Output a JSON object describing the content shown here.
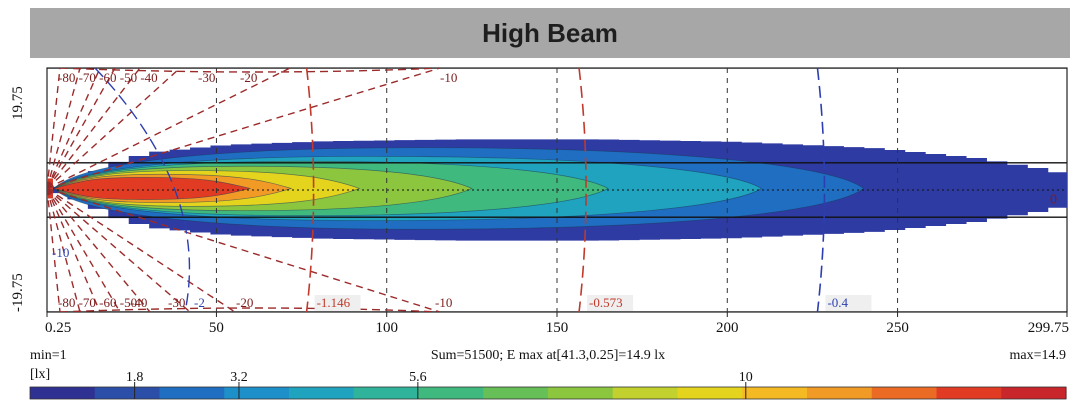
{
  "title": "High Beam",
  "chart_data": {
    "type": "heatmap",
    "title": "High Beam",
    "x_range": [
      0.25,
      299.75
    ],
    "y_range": [
      -19.75,
      19.75
    ],
    "x_ticks": [
      {
        "value": 0.25,
        "label": "0.25"
      },
      {
        "value": 50,
        "label": "50"
      },
      {
        "value": 100,
        "label": "100"
      },
      {
        "value": 150,
        "label": "150"
      },
      {
        "value": 200,
        "label": "200"
      },
      {
        "value": 250,
        "label": "250"
      },
      {
        "value": 299.75,
        "label": "299.75"
      }
    ],
    "y_ticks": [
      {
        "value": 19.75,
        "label": "19.75"
      },
      {
        "value": -19.75,
        "label": "-19.75"
      }
    ],
    "beam": {
      "peak_x": 41.3,
      "peak_y": 0.25,
      "peak_value": 14.9,
      "extent": [
        [
          0.25,
          0.5
        ],
        [
          5,
          1.2
        ],
        [
          10,
          2.5
        ],
        [
          20,
          5
        ],
        [
          30,
          6.2
        ],
        [
          50,
          7.3
        ],
        [
          80,
          7.9
        ],
        [
          120,
          8.2
        ],
        [
          160,
          8.2
        ],
        [
          200,
          7.8
        ],
        [
          240,
          6.8
        ],
        [
          270,
          5.2
        ],
        [
          290,
          3.4
        ],
        [
          299.75,
          2.2
        ]
      ],
      "bands": [
        {
          "value": 1,
          "color": "#2e3ba3",
          "length": 299.75,
          "width": 8.2
        },
        {
          "value": 1.8,
          "color": "#1f6ec2",
          "length": 240,
          "width": 6.6
        },
        {
          "value": 3.2,
          "color": "#20a3bf",
          "length": 210,
          "width": 5.2
        },
        {
          "value": 4.5,
          "color": "#3fb97d",
          "length": 165,
          "width": 4.4
        },
        {
          "value": 5.6,
          "color": "#8cc63f",
          "length": 125,
          "width": 3.6
        },
        {
          "value": 7,
          "color": "#e4d41e",
          "length": 92,
          "width": 2.9
        },
        {
          "value": 8.5,
          "color": "#f19a26",
          "length": 72,
          "width": 2.3
        },
        {
          "value": 10,
          "color": "#e23b24",
          "length": 60,
          "width": 1.8
        }
      ]
    },
    "horizontal_lines": [
      19.75,
      4.4,
      0,
      -4.4,
      -19.75
    ],
    "vertical_gridlines": [
      50,
      100,
      150,
      200,
      250
    ],
    "isolines": [
      {
        "x": 80,
        "label": "-1.146",
        "color": "#c0392b"
      },
      {
        "x": 160,
        "label": "-0.573",
        "color": "#c0392b"
      },
      {
        "x": 230,
        "label": "-0.4",
        "color": "#2c3fb0"
      }
    ],
    "top_angle_labels": [
      "-80",
      "-70",
      "-60",
      "-50",
      "-40",
      "-30",
      "-20",
      "-10"
    ],
    "bottom_angle_labels": [
      "-80",
      "-70",
      "-60",
      "-50",
      "-40",
      "-30",
      "-20",
      "-10"
    ],
    "top_angle_text": "-80 -70 -60 -50 -40",
    "bottom_angle_text": "-80 -70 -60 -50",
    "center_label": "0",
    "minus2_label": "-2",
    "left_minus10_label": "-10",
    "sum_text": "Sum=51500; E max at[41.3,0.25]=14.9 lx",
    "min_text": "min=1",
    "max_text": "max=14.9",
    "unit_label": "[lx]",
    "colorbar": {
      "min": 1,
      "max": 14.9,
      "labeled_ticks": [
        {
          "value": 1.8,
          "label": "1.8"
        },
        {
          "value": 3.2,
          "label": "3.2"
        },
        {
          "value": 5.6,
          "label": "5.6"
        },
        {
          "value": 10,
          "label": "10"
        }
      ],
      "colors": [
        "#2e3192",
        "#2b4fa8",
        "#1f6ec2",
        "#1d8fc9",
        "#20a3bf",
        "#2fb39a",
        "#3fb97d",
        "#66bf57",
        "#8cc63f",
        "#c2d12d",
        "#e4d41e",
        "#f5b924",
        "#f19a26",
        "#eb6b25",
        "#e23b24",
        "#c9262b"
      ]
    },
    "grid": true,
    "legend": "none"
  }
}
